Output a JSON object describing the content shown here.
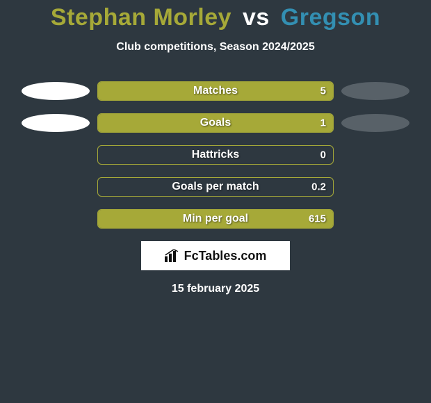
{
  "title": {
    "player1": "Stephan Morley",
    "vs": "vs",
    "player2": "Gregson",
    "color_p1": "#a6a938",
    "color_vs": "#ffffff",
    "color_p2": "#338fb2",
    "fontsize": 34
  },
  "subtitle": "Club competitions, Season 2024/2025",
  "background_color": "#2e3840",
  "bar": {
    "track_width": 340,
    "track_height": 28,
    "border_color": "#a6a938",
    "fill_color": "#a6a938",
    "label_color": "#ffffff",
    "label_fontsize": 16,
    "value_fontsize": 15
  },
  "ellipse": {
    "left_color": "#ffffff",
    "right_color": "#586168",
    "width": 98,
    "height": 26
  },
  "stats": [
    {
      "label": "Matches",
      "value": "5",
      "fill_pct": 100,
      "show_left_ellipse": true,
      "show_right_ellipse": true
    },
    {
      "label": "Goals",
      "value": "1",
      "fill_pct": 100,
      "show_left_ellipse": true,
      "show_right_ellipse": true
    },
    {
      "label": "Hattricks",
      "value": "0",
      "fill_pct": 0,
      "show_left_ellipse": false,
      "show_right_ellipse": false
    },
    {
      "label": "Goals per match",
      "value": "0.2",
      "fill_pct": 0,
      "show_left_ellipse": false,
      "show_right_ellipse": false
    },
    {
      "label": "Min per goal",
      "value": "615",
      "fill_pct": 100,
      "show_left_ellipse": false,
      "show_right_ellipse": false
    }
  ],
  "logo": {
    "text": "FcTables.com",
    "icon": "bar-chart-icon",
    "bg": "#ffffff",
    "color": "#111111"
  },
  "date": "15 february 2025"
}
